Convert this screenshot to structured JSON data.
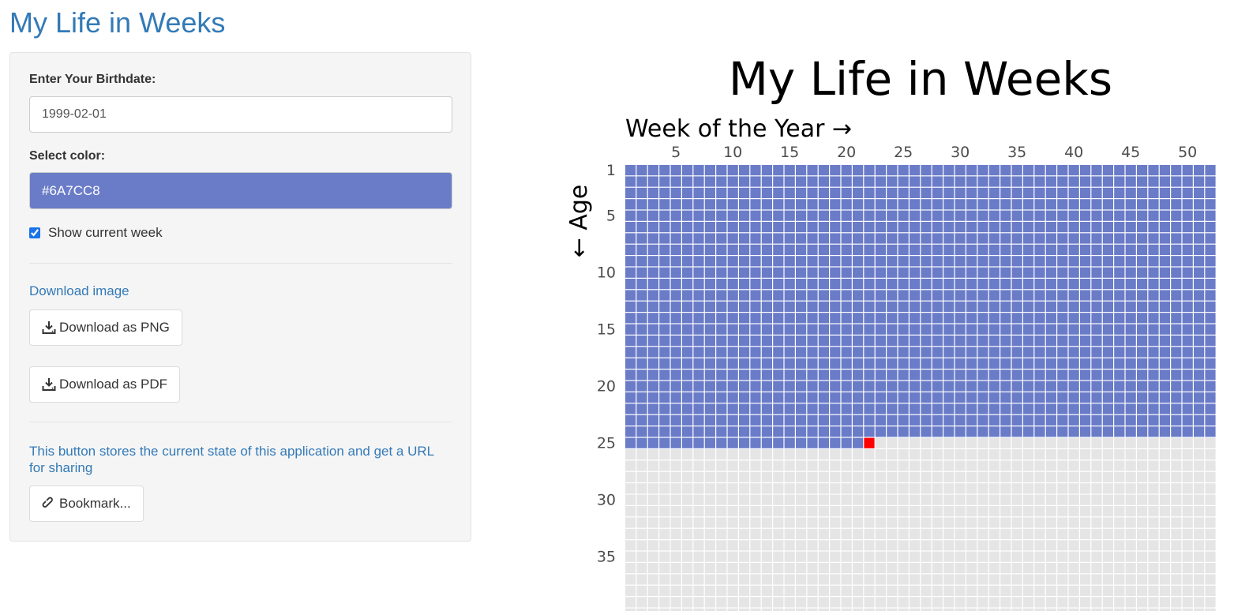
{
  "app": {
    "title": "My Life in Weeks"
  },
  "sidebar": {
    "birthdate_label": "Enter Your Birthdate:",
    "birthdate_value": "1999-02-01",
    "color_label": "Select color:",
    "color_value": "#6A7CC8",
    "show_current_week_label": "Show current week",
    "show_current_week_checked": true,
    "download_heading": "Download image",
    "download_png_label": "Download as PNG",
    "download_pdf_label": "Download as PDF",
    "bookmark_description": "This button stores the current state of this application and get a URL for sharing",
    "bookmark_label": "Bookmark..."
  },
  "icons": {
    "download": "download-icon",
    "bookmark": "link-icon"
  },
  "colors": {
    "accent": "#337ab7",
    "lived_week": "#6A7CC8",
    "current_week": "#ff0000",
    "future_week": "#e5e5e5"
  },
  "chart_data": {
    "type": "heatmap",
    "title": "My Life in Weeks",
    "xlabel": "Week of the Year →",
    "ylabel": "← Age",
    "x_ticks": [
      5,
      10,
      15,
      20,
      25,
      30,
      35,
      40,
      45,
      50
    ],
    "y_ticks": [
      1,
      5,
      10,
      15,
      20,
      25,
      30,
      35
    ],
    "weeks_per_year": 52,
    "lived_full_years": 24,
    "current_age": 25,
    "current_week": 22
  }
}
